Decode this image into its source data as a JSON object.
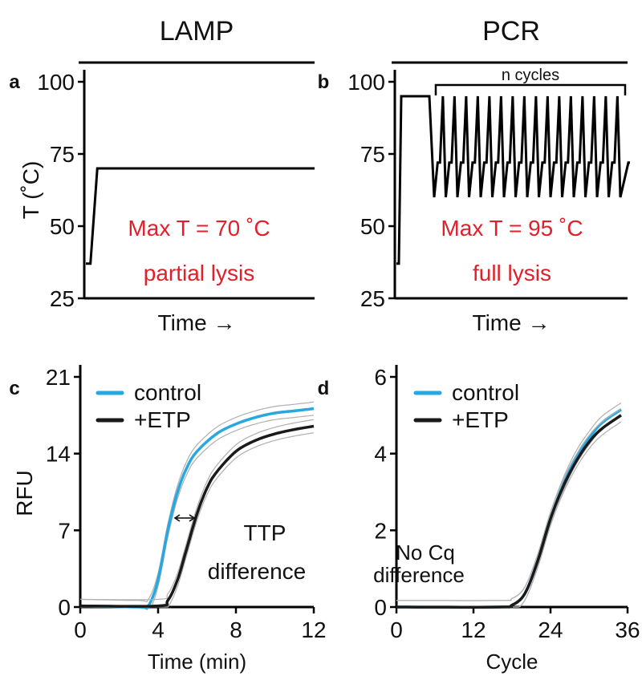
{
  "headers": {
    "left": "LAMP",
    "right": "PCR"
  },
  "colors": {
    "control": "#29a8e0",
    "etp": "#1a1a1a",
    "annotation": "#e0202a",
    "band": "#b0b0b0"
  },
  "chart_data": [
    {
      "panel": "a",
      "type": "line",
      "title": "LAMP",
      "ylabel": "T (˚C)",
      "xlabel": "Time →",
      "ylim": [
        25,
        100
      ],
      "yticks": [
        "25",
        "50",
        "75",
        "100"
      ],
      "x": [
        0,
        0.02,
        0.05,
        1
      ],
      "y": [
        37,
        37,
        70,
        70
      ],
      "annotations": [
        "Max T = 70 ˚C",
        "partial lysis"
      ]
    },
    {
      "panel": "b",
      "type": "line",
      "title": "PCR",
      "ylabel": "",
      "xlabel": "Time →",
      "ylim": [
        25,
        100
      ],
      "yticks": [
        "25",
        "50",
        "75",
        "100"
      ],
      "profile": {
        "start": 37,
        "denature": 95,
        "anneal": 60,
        "extend": 72,
        "cycles": 16
      },
      "bracket_label": "n cycles",
      "annotations": [
        "Max T = 95 ˚C",
        "full lysis"
      ]
    },
    {
      "panel": "c",
      "type": "line",
      "xlabel": "Time (min)",
      "ylabel": "RFU",
      "xlim": [
        0,
        12
      ],
      "ylim": [
        0,
        21
      ],
      "xticks": [
        "0",
        "4",
        "8",
        "12"
      ],
      "yticks": [
        "0",
        "7",
        "14",
        "21"
      ],
      "series": [
        {
          "name": "control",
          "x": [
            0,
            3,
            3.5,
            4,
            4.5,
            5,
            5.5,
            6,
            7,
            8,
            9,
            10,
            11,
            12
          ],
          "y": [
            0.1,
            0,
            0.1,
            2.5,
            7,
            10.5,
            12.8,
            14.2,
            15.8,
            16.7,
            17.3,
            17.7,
            17.9,
            18.1
          ]
        },
        {
          "name": "+ETP",
          "x": [
            0,
            4,
            4.5,
            5,
            5.5,
            6,
            6.5,
            7,
            8,
            9,
            10,
            11,
            12
          ],
          "y": [
            0.1,
            0.1,
            0.6,
            2.5,
            5.5,
            8.5,
            10.8,
            12.3,
            14.2,
            15.2,
            15.8,
            16.2,
            16.5
          ]
        }
      ],
      "annotations": [
        "TTP",
        "difference"
      ]
    },
    {
      "panel": "d",
      "type": "line",
      "xlabel": "Cycle",
      "ylabel": "",
      "xlim": [
        0,
        36
      ],
      "ylim": [
        0,
        6
      ],
      "xticks": [
        "0",
        "12",
        "24",
        "36"
      ],
      "yticks": [
        "0",
        "2",
        "4",
        "6"
      ],
      "series": [
        {
          "name": "control",
          "x": [
            0,
            16,
            18,
            20,
            22,
            24,
            26,
            28,
            30,
            32,
            35
          ],
          "y": [
            0,
            0,
            0.05,
            0.35,
            1.2,
            2.3,
            3.2,
            3.9,
            4.4,
            4.8,
            5.15
          ]
        },
        {
          "name": "+ETP",
          "x": [
            0,
            16,
            18,
            20,
            22,
            24,
            26,
            28,
            30,
            32,
            35
          ],
          "y": [
            0,
            0,
            0.05,
            0.35,
            1.2,
            2.3,
            3.15,
            3.8,
            4.3,
            4.65,
            5.0
          ]
        }
      ],
      "annotations": [
        "No Cq",
        "difference"
      ]
    }
  ],
  "panel_letters": [
    "a",
    "b",
    "c",
    "d"
  ]
}
